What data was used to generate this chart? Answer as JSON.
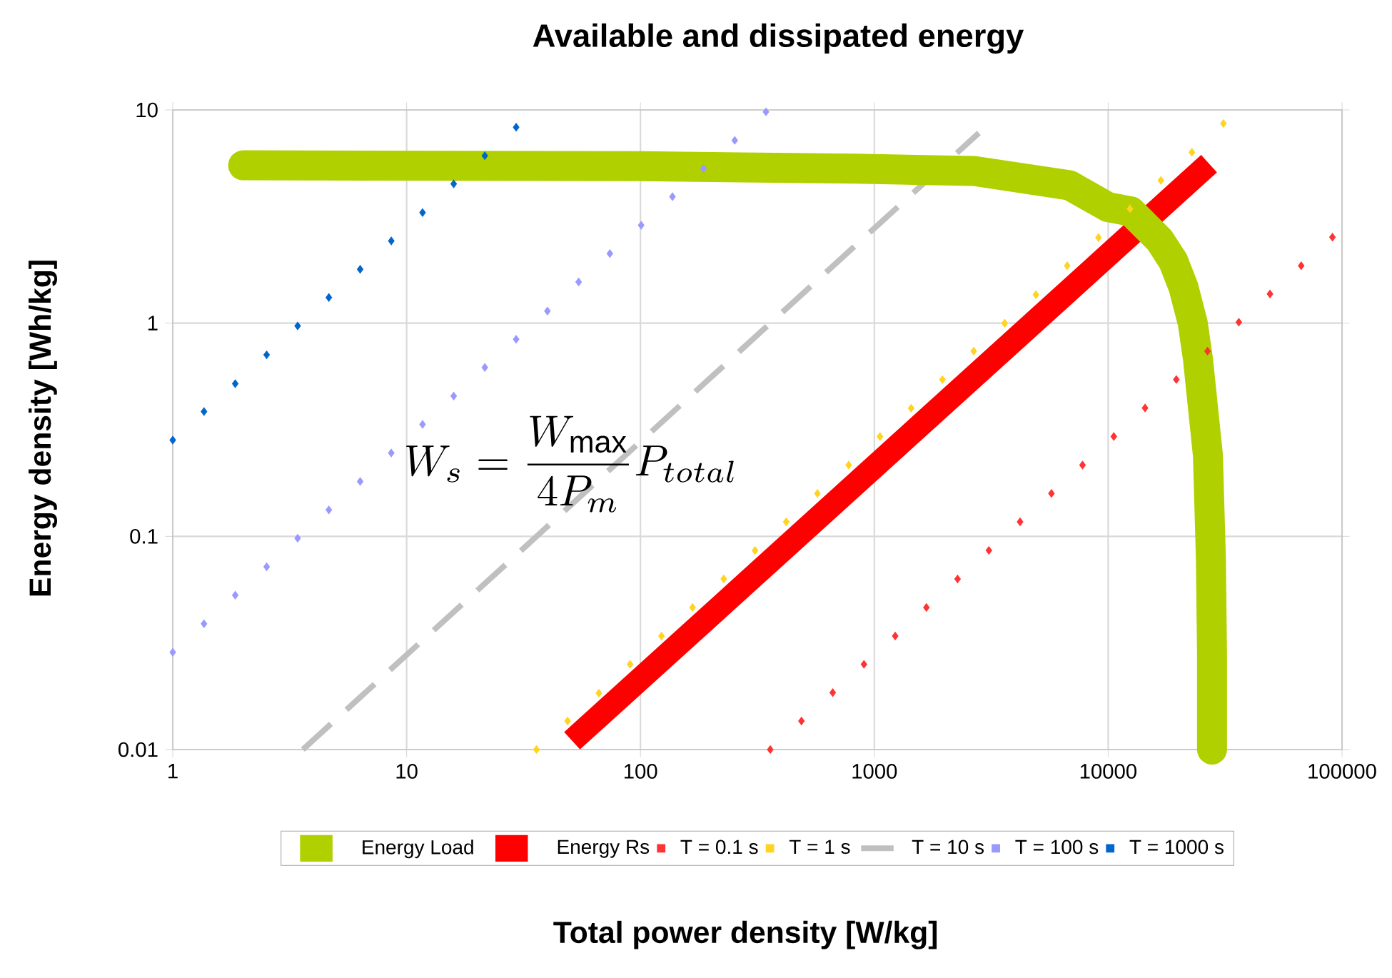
{
  "chart_data": {
    "type": "line",
    "title": "Available and dissipated energy",
    "xlabel": "Total power density [W/kg]",
    "ylabel": "Energy density [Wh/kg]",
    "log": "xy",
    "xlim": [
      1,
      100000
    ],
    "ylim": [
      0.01,
      10
    ],
    "xticks": [
      1,
      10,
      100,
      1000,
      10000,
      100000
    ],
    "yticks": [
      0.01,
      0.1,
      1,
      10
    ],
    "grid": true,
    "legend": "bottom",
    "annotations": [
      "W_s=\\frac{W_{\\max}}{4P_m}P_{total}"
    ],
    "series": [
      {
        "name": "Energy Load",
        "color": "#b0d000",
        "line_style": "solid",
        "marker": "none",
        "x": [
          2,
          100,
          830,
          2670,
          6840,
          10000,
          12500,
          16600,
          19000,
          21000,
          23000,
          24200,
          26700,
          27500,
          27800,
          27800
        ],
        "values": [
          5.5,
          5.45,
          5.3,
          5.17,
          4.43,
          3.5,
          3.34,
          2.45,
          1.95,
          1.47,
          1.0,
          0.68,
          0.24,
          0.078,
          0.028,
          0.01
        ]
      },
      {
        "name": "Energy Rs",
        "color": "#ff0000",
        "line_style": "solid",
        "marker": "none",
        "x": [
          51,
          27000
        ],
        "values": [
          0.011,
          5.6
        ]
      },
      {
        "name": "T = 0.1 s",
        "color": "#ff3333",
        "type": "scatter",
        "marker": "diamond",
        "x": [
          359,
          488,
          664,
          903,
          1228,
          1670,
          2270,
          3090,
          4200,
          5720,
          7770,
          10570,
          14380,
          19560,
          26600,
          36200,
          49200,
          66900,
          91000
        ],
        "values": [
          0.01,
          0.0136,
          0.0185,
          0.0251,
          0.0341,
          0.0464,
          0.0631,
          0.0859,
          0.117,
          0.159,
          0.216,
          0.294,
          0.4,
          0.544,
          0.739,
          1.01,
          1.37,
          1.86,
          2.53
        ]
      },
      {
        "name": "T = 1 s",
        "color": "#ffd320",
        "type": "scatter",
        "marker": "diamond",
        "x": [
          35.9,
          48.8,
          66.4,
          90.3,
          123,
          167,
          227,
          309,
          420,
          571,
          777,
          1057,
          1437,
          1955,
          2660,
          3610,
          4910,
          6680,
          9090,
          12400,
          16800,
          22800,
          31100
        ],
        "values": [
          0.01,
          0.0136,
          0.0184,
          0.0251,
          0.0341,
          0.0464,
          0.0631,
          0.0858,
          0.117,
          0.159,
          0.216,
          0.294,
          0.399,
          0.543,
          0.739,
          1.0,
          1.36,
          1.86,
          2.52,
          3.44,
          4.67,
          6.33,
          8.64
        ]
      },
      {
        "name": "T = 10 s",
        "color": "#c0c0c0",
        "line_style": "dashed",
        "marker": "none",
        "x": [
          3.6,
          2800
        ],
        "values": [
          0.01,
          7.8
        ]
      },
      {
        "name": "T = 100 s",
        "color": "#9999ff",
        "type": "scatter",
        "marker": "diamond",
        "x": [
          1,
          1.36,
          1.85,
          2.52,
          3.42,
          4.65,
          6.33,
          8.6,
          11.7,
          15.9,
          21.6,
          29.4,
          40,
          54.4,
          74,
          100.7,
          137,
          186,
          253,
          344
        ],
        "values": [
          0.0286,
          0.0389,
          0.053,
          0.072,
          0.098,
          0.133,
          0.181,
          0.246,
          0.335,
          0.455,
          0.62,
          0.84,
          1.14,
          1.56,
          2.12,
          2.88,
          3.92,
          5.3,
          7.2,
          9.8
        ]
      },
      {
        "name": "T = 1000 s",
        "color": "#0066cc",
        "type": "scatter",
        "marker": "diamond",
        "x": [
          1,
          1.36,
          1.85,
          2.52,
          3.42,
          4.65,
          6.33,
          8.6,
          11.7,
          15.9,
          21.6,
          29.4
        ],
        "values": [
          0.283,
          0.385,
          0.52,
          0.71,
          0.97,
          1.32,
          1.79,
          2.43,
          3.3,
          4.5,
          6.1,
          8.3
        ]
      }
    ]
  }
}
